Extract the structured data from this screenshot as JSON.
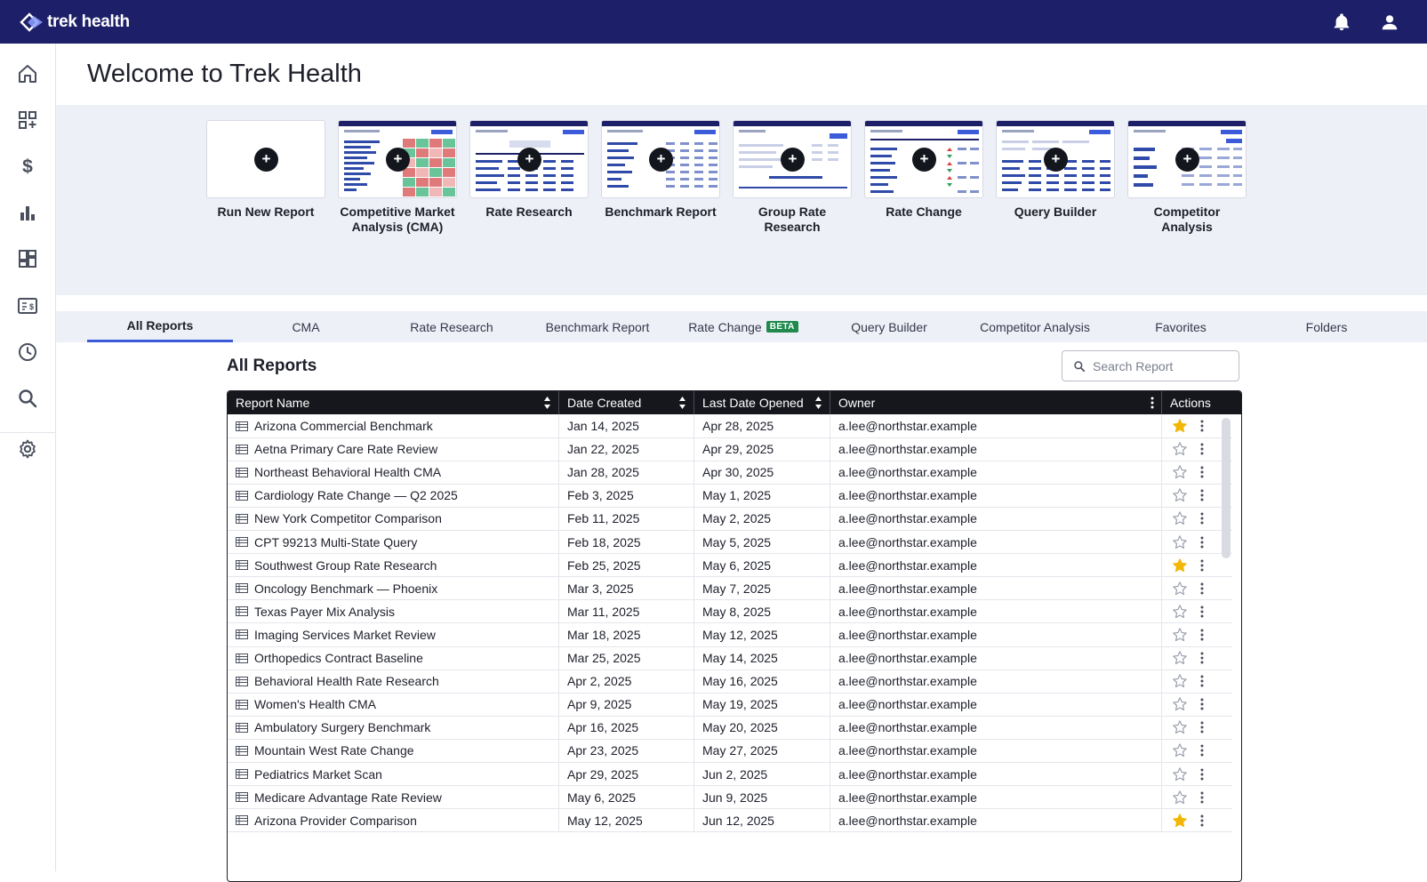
{
  "app": {
    "brand": "trek health"
  },
  "colors": {
    "topbar": "#1d2068",
    "accent": "#3b5bdb",
    "beta": "#1f8a4c",
    "star": "#f2b705",
    "table_header": "#16171d"
  },
  "topbar": {
    "icons": [
      "bell-icon",
      "user-icon"
    ]
  },
  "sidebar": {
    "items": [
      {
        "icon": "home-icon"
      },
      {
        "icon": "add-widget-icon"
      },
      {
        "icon": "dollar-icon"
      },
      {
        "icon": "bar-chart-icon"
      },
      {
        "icon": "dashboard-icon"
      },
      {
        "icon": "id-card-icon"
      },
      {
        "icon": "clock-icon"
      },
      {
        "icon": "search-icon"
      },
      {
        "icon": "gear-icon"
      }
    ]
  },
  "page": {
    "title": "Welcome to Trek Health"
  },
  "report_cards": [
    {
      "label": "Run New Report"
    },
    {
      "label": "Competitive Market Analysis (CMA)"
    },
    {
      "label": "Rate Research"
    },
    {
      "label": "Benchmark Report"
    },
    {
      "label": "Group Rate Research"
    },
    {
      "label": "Rate Change"
    },
    {
      "label": "Query Builder"
    },
    {
      "label": "Competitor Analysis"
    }
  ],
  "tabs": [
    {
      "label": "All Reports",
      "active": true
    },
    {
      "label": "CMA"
    },
    {
      "label": "Rate Research"
    },
    {
      "label": "Benchmark Report"
    },
    {
      "label": "Rate Change",
      "badge": "BETA"
    },
    {
      "label": "Query Builder"
    },
    {
      "label": "Competitor Analysis"
    },
    {
      "label": "Favorites"
    },
    {
      "label": "Folders"
    }
  ],
  "reports": {
    "title": "All Reports",
    "search_placeholder": "Search Report",
    "columns": [
      "Report Name",
      "Date Created",
      "Last Date Opened",
      "Owner",
      "Actions"
    ],
    "rows": [
      {
        "name": "Arizona Commercial Benchmark",
        "created": "Jan 14, 2025",
        "opened": "Apr 28, 2025",
        "owner": "a.lee@northstar.example",
        "favorite": true
      },
      {
        "name": "Aetna Primary Care Rate Review",
        "created": "Jan 22, 2025",
        "opened": "Apr 29, 2025",
        "owner": "a.lee@northstar.example",
        "favorite": false
      },
      {
        "name": "Northeast Behavioral Health CMA",
        "created": "Jan 28, 2025",
        "opened": "Apr 30, 2025",
        "owner": "a.lee@northstar.example",
        "favorite": false
      },
      {
        "name": "Cardiology Rate Change — Q2 2025",
        "created": "Feb 3, 2025",
        "opened": "May 1, 2025",
        "owner": "a.lee@northstar.example",
        "favorite": false
      },
      {
        "name": "New York Competitor Comparison",
        "created": "Feb 11, 2025",
        "opened": "May 2, 2025",
        "owner": "a.lee@northstar.example",
        "favorite": false
      },
      {
        "name": "CPT 99213 Multi-State Query",
        "created": "Feb 18, 2025",
        "opened": "May 5, 2025",
        "owner": "a.lee@northstar.example",
        "favorite": false
      },
      {
        "name": "Southwest Group Rate Research",
        "created": "Feb 25, 2025",
        "opened": "May 6, 2025",
        "owner": "a.lee@northstar.example",
        "favorite": true
      },
      {
        "name": "Oncology Benchmark — Phoenix",
        "created": "Mar 3, 2025",
        "opened": "May 7, 2025",
        "owner": "a.lee@northstar.example",
        "favorite": false
      },
      {
        "name": "Texas Payer Mix Analysis",
        "created": "Mar 11, 2025",
        "opened": "May 8, 2025",
        "owner": "a.lee@northstar.example",
        "favorite": false
      },
      {
        "name": "Imaging Services Market Review",
        "created": "Mar 18, 2025",
        "opened": "May 12, 2025",
        "owner": "a.lee@northstar.example",
        "favorite": false
      },
      {
        "name": "Orthopedics Contract Baseline",
        "created": "Mar 25, 2025",
        "opened": "May 14, 2025",
        "owner": "a.lee@northstar.example",
        "favorite": false
      },
      {
        "name": "Behavioral Health Rate Research",
        "created": "Apr 2, 2025",
        "opened": "May 16, 2025",
        "owner": "a.lee@northstar.example",
        "favorite": false
      },
      {
        "name": "Women's Health CMA",
        "created": "Apr 9, 2025",
        "opened": "May 19, 2025",
        "owner": "a.lee@northstar.example",
        "favorite": false
      },
      {
        "name": "Ambulatory Surgery Benchmark",
        "created": "Apr 16, 2025",
        "opened": "May 20, 2025",
        "owner": "a.lee@northstar.example",
        "favorite": false
      },
      {
        "name": "Mountain West Rate Change",
        "created": "Apr 23, 2025",
        "opened": "May 27, 2025",
        "owner": "a.lee@northstar.example",
        "favorite": false
      },
      {
        "name": "Pediatrics Market Scan",
        "created": "Apr 29, 2025",
        "opened": "Jun 2, 2025",
        "owner": "a.lee@northstar.example",
        "favorite": false
      },
      {
        "name": "Medicare Advantage Rate Review",
        "created": "May 6, 2025",
        "opened": "Jun 9, 2025",
        "owner": "a.lee@northstar.example",
        "favorite": false
      },
      {
        "name": "Arizona Provider Comparison",
        "created": "May 12, 2025",
        "opened": "Jun 12, 2025",
        "owner": "a.lee@northstar.example",
        "favorite": true
      }
    ]
  }
}
